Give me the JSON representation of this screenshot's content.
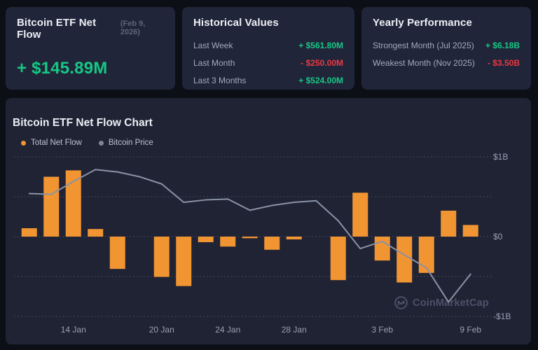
{
  "cards": {
    "net_flow": {
      "title": "Bitcoin ETF Net Flow",
      "date": "(Feb 9, 2026)",
      "value": "+ $145.89M",
      "trend": "up"
    },
    "historical": {
      "title": "Historical Values",
      "rows": [
        {
          "label": "Last Week",
          "value": "+ $561.80M",
          "trend": "up"
        },
        {
          "label": "Last Month",
          "value": "- $250.00M",
          "trend": "down"
        },
        {
          "label": "Last 3 Months",
          "value": "+ $524.00M",
          "trend": "up"
        }
      ]
    },
    "yearly": {
      "title": "Yearly Performance",
      "rows": [
        {
          "label": "Strongest Month (Jul 2025)",
          "value": "+ $6.18B",
          "trend": "up"
        },
        {
          "label": "Weakest Month (Nov 2025)",
          "value": "- $3.50B",
          "trend": "down"
        }
      ]
    }
  },
  "chart": {
    "title": "Bitcoin ETF Net Flow Chart",
    "legend": [
      {
        "label": "Total Net Flow",
        "color": "#f19532"
      },
      {
        "label": "Bitcoin Price",
        "color": "#7d8598"
      }
    ],
    "watermark": "CoinMarketCap"
  },
  "chart_data": {
    "type": "bar+line",
    "y_axis": {
      "units": "USD billions",
      "ticks": [
        {
          "label": "$1B",
          "value": 1
        },
        {
          "label": "$0",
          "value": 0
        },
        {
          "label": "-$1B",
          "value": -1
        }
      ],
      "gridlines_b": [
        1,
        0.5,
        0,
        -0.5,
        -1
      ],
      "ylim": [
        -1.15,
        1.15
      ]
    },
    "x_axis": {
      "tick_labels": [
        {
          "label": "14 Jan",
          "slot": 2
        },
        {
          "label": "20 Jan",
          "slot": 6
        },
        {
          "label": "24 Jan",
          "slot": 9
        },
        {
          "label": "28 Jan",
          "slot": 12
        },
        {
          "label": "3 Feb",
          "slot": 16
        },
        {
          "label": "9 Feb",
          "slot": 20
        }
      ]
    },
    "series": [
      {
        "name": "Total Net Flow",
        "type": "bar",
        "color": "#f19532",
        "units": "USD millions",
        "values": [
          105,
          750,
          830,
          95,
          -405,
          0,
          -505,
          -620,
          -70,
          -125,
          -20,
          -165,
          -35,
          0,
          -545,
          550,
          -300,
          -575,
          -455,
          325,
          145.89
        ]
      },
      {
        "name": "Bitcoin Price",
        "type": "line",
        "color": "#8a92a6",
        "units": "axis-relative, billions scale",
        "values": [
          0.54,
          0.53,
          0.69,
          0.84,
          0.81,
          0.75,
          0.66,
          0.43,
          0.46,
          0.47,
          0.33,
          0.39,
          0.43,
          0.45,
          0.2,
          -0.15,
          -0.06,
          -0.23,
          -0.39,
          -0.82,
          -0.47
        ]
      }
    ]
  },
  "colors": {
    "positive": "#16c784",
    "negative": "#ea3943",
    "bar": "#f19532",
    "line": "#8a92a6"
  }
}
